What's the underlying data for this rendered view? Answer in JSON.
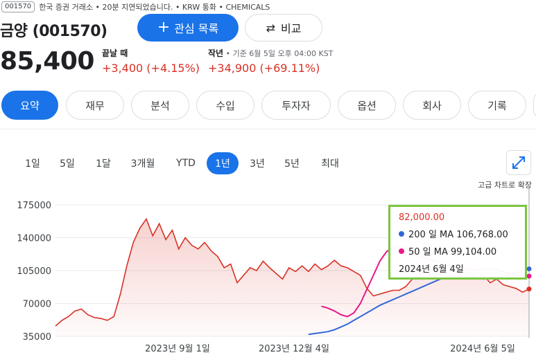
{
  "header": {
    "ticker_code": "001570",
    "info_line": "한국 증권 거래소 • 20분 지연되었습니다. • KRW 통화 • CHEMICALS",
    "company": "금양 (001570)",
    "follow_label": "관심 목록",
    "compare_label": "비교",
    "price": "85,400"
  },
  "changes": {
    "close_title": "끝날 때",
    "close_value": "+3,400 (+4.15%)",
    "year_title": "작년",
    "year_sub": " • 기준 6월 5일 오후 04:00 KST",
    "year_value": "+34,900 (+69.11%)"
  },
  "tabs": [
    "요약",
    "재무",
    "분석",
    "수입",
    "투자자",
    "옵션",
    "회사",
    "기록"
  ],
  "ranges": [
    "1일",
    "5일",
    "1달",
    "3개월",
    "YTD",
    "1년",
    "3년",
    "5년",
    "최대"
  ],
  "expand_label": "고급 차트로 확장",
  "tooltip": {
    "price": "82,000.00",
    "ma200": "200 일 MA 106,768.00",
    "ma50": "50 일 MA 99,104.00",
    "date": "2024년 6월 4일"
  },
  "colors": {
    "accent": "#1a73e8",
    "price_line": "#d93025",
    "ma50": "#e8188a",
    "ma200": "#3367d6",
    "highlight": "#7cc540"
  },
  "chart_data": {
    "type": "line",
    "ylim": [
      35000,
      175000
    ],
    "yticks": [
      "175000",
      "140000",
      "105000",
      "70000",
      "35000"
    ],
    "xticks": [
      "2023년 9월 1일",
      "2023년 12월 4일",
      "2024년 6월 5일"
    ],
    "series": [
      {
        "name": "price",
        "values": [
          46000,
          52000,
          56000,
          62000,
          64000,
          58000,
          55000,
          54000,
          52000,
          56000,
          80000,
          110000,
          135000,
          150000,
          160000,
          142000,
          155000,
          138000,
          148000,
          128000,
          140000,
          132000,
          128000,
          135000,
          126000,
          120000,
          108000,
          112000,
          92000,
          100000,
          108000,
          105000,
          115000,
          108000,
          102000,
          96000,
          108000,
          104000,
          110000,
          104000,
          112000,
          106000,
          110000,
          116000,
          110000,
          108000,
          104000,
          100000,
          86000,
          78000,
          80000,
          82000,
          84000,
          84000,
          88000,
          96000,
          100000,
          104000,
          98000,
          102000,
          96000,
          100000,
          98000,
          104000,
          102000,
          96000,
          100000,
          92000,
          96000,
          90000,
          88000,
          86000,
          82000,
          85400
        ]
      },
      {
        "name": "200 일 MA",
        "values": [
          37000,
          38000,
          39000,
          40000,
          42000,
          45000,
          48000,
          52000,
          56000,
          60000,
          64000,
          68000,
          71000,
          74000,
          77000,
          80000,
          83000,
          86000,
          89000,
          92000,
          95000,
          98000,
          99000,
          99500,
          99000,
          98000,
          97000,
          96000,
          97000,
          98000,
          99000,
          101000,
          103000,
          105000,
          106800
        ]
      },
      {
        "name": "50 일 MA",
        "values": [
          67000,
          65000,
          62000,
          58000,
          56000,
          60000,
          70000,
          85000,
          100000,
          115000,
          125000,
          130000,
          131000,
          130000,
          125000,
          120000,
          118000,
          116000,
          114000,
          112000,
          110000,
          108000,
          107000,
          106000,
          106000,
          106500,
          107000,
          106000,
          104000,
          102000,
          100000,
          99000,
          99104
        ]
      }
    ]
  }
}
